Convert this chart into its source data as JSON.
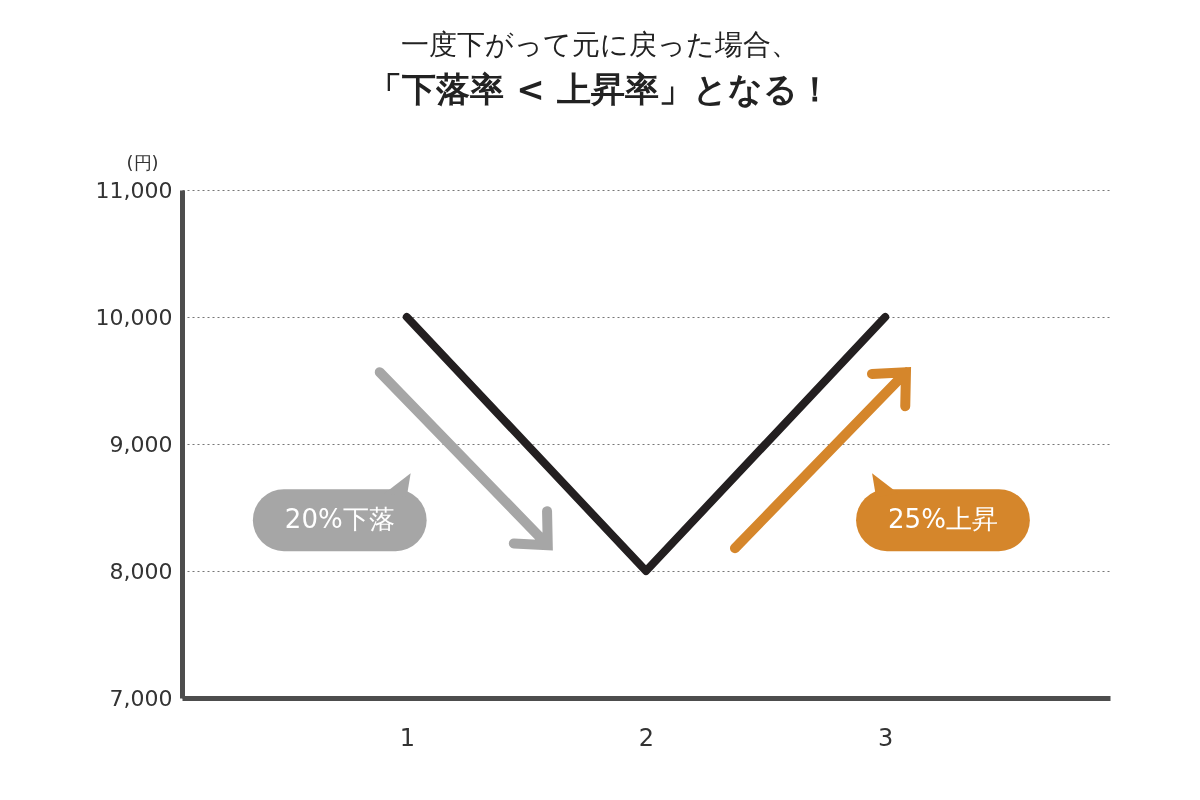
{
  "chart_data": {
    "type": "line",
    "title": "一度下がって元に戻った場合、",
    "subtitle": "「下落率 < 上昇率」となる！",
    "ylabel": "(円)",
    "x": [
      1,
      2,
      3
    ],
    "series": [
      {
        "color": "#231f20",
        "values": [
          10000,
          8000,
          10000
        ]
      }
    ],
    "xlim": [
      0.06,
      3.94
    ],
    "xticks": [
      1,
      2,
      3
    ],
    "ylim": [
      7000,
      11000
    ],
    "yticks": [
      {
        "value": 7000,
        "label": "7,000"
      },
      {
        "value": 8000,
        "label": "8,000"
      },
      {
        "value": 9000,
        "label": "9,000"
      },
      {
        "value": 10000,
        "label": "10,000"
      },
      {
        "value": 11000,
        "label": "11,000"
      }
    ],
    "grid": "y",
    "marker": "none",
    "line_style": "solid",
    "annotations": [
      "20%下落",
      "25%上昇"
    ]
  }
}
